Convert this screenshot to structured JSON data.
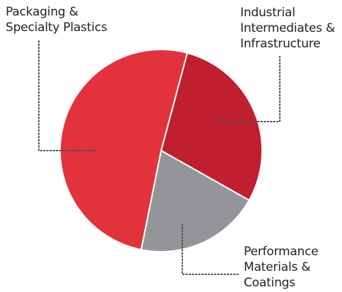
{
  "chart_data": {
    "type": "pie",
    "start_angle_deg": 15,
    "direction": "clockwise",
    "slices": [
      {
        "label_lines": [
          "Industrial",
          "Intermediates &",
          "Infrastructure"
        ],
        "value": 29,
        "color": "#c01f2f"
      },
      {
        "label_lines": [
          "Performance",
          "Materials &",
          "Coatings"
        ],
        "value": 20,
        "color": "#939598"
      },
      {
        "label_lines": [
          "Packaging &",
          "Specialty Plastics"
        ],
        "value": 51,
        "color": "#e2333d"
      }
    ],
    "legend": "leader-lines"
  }
}
